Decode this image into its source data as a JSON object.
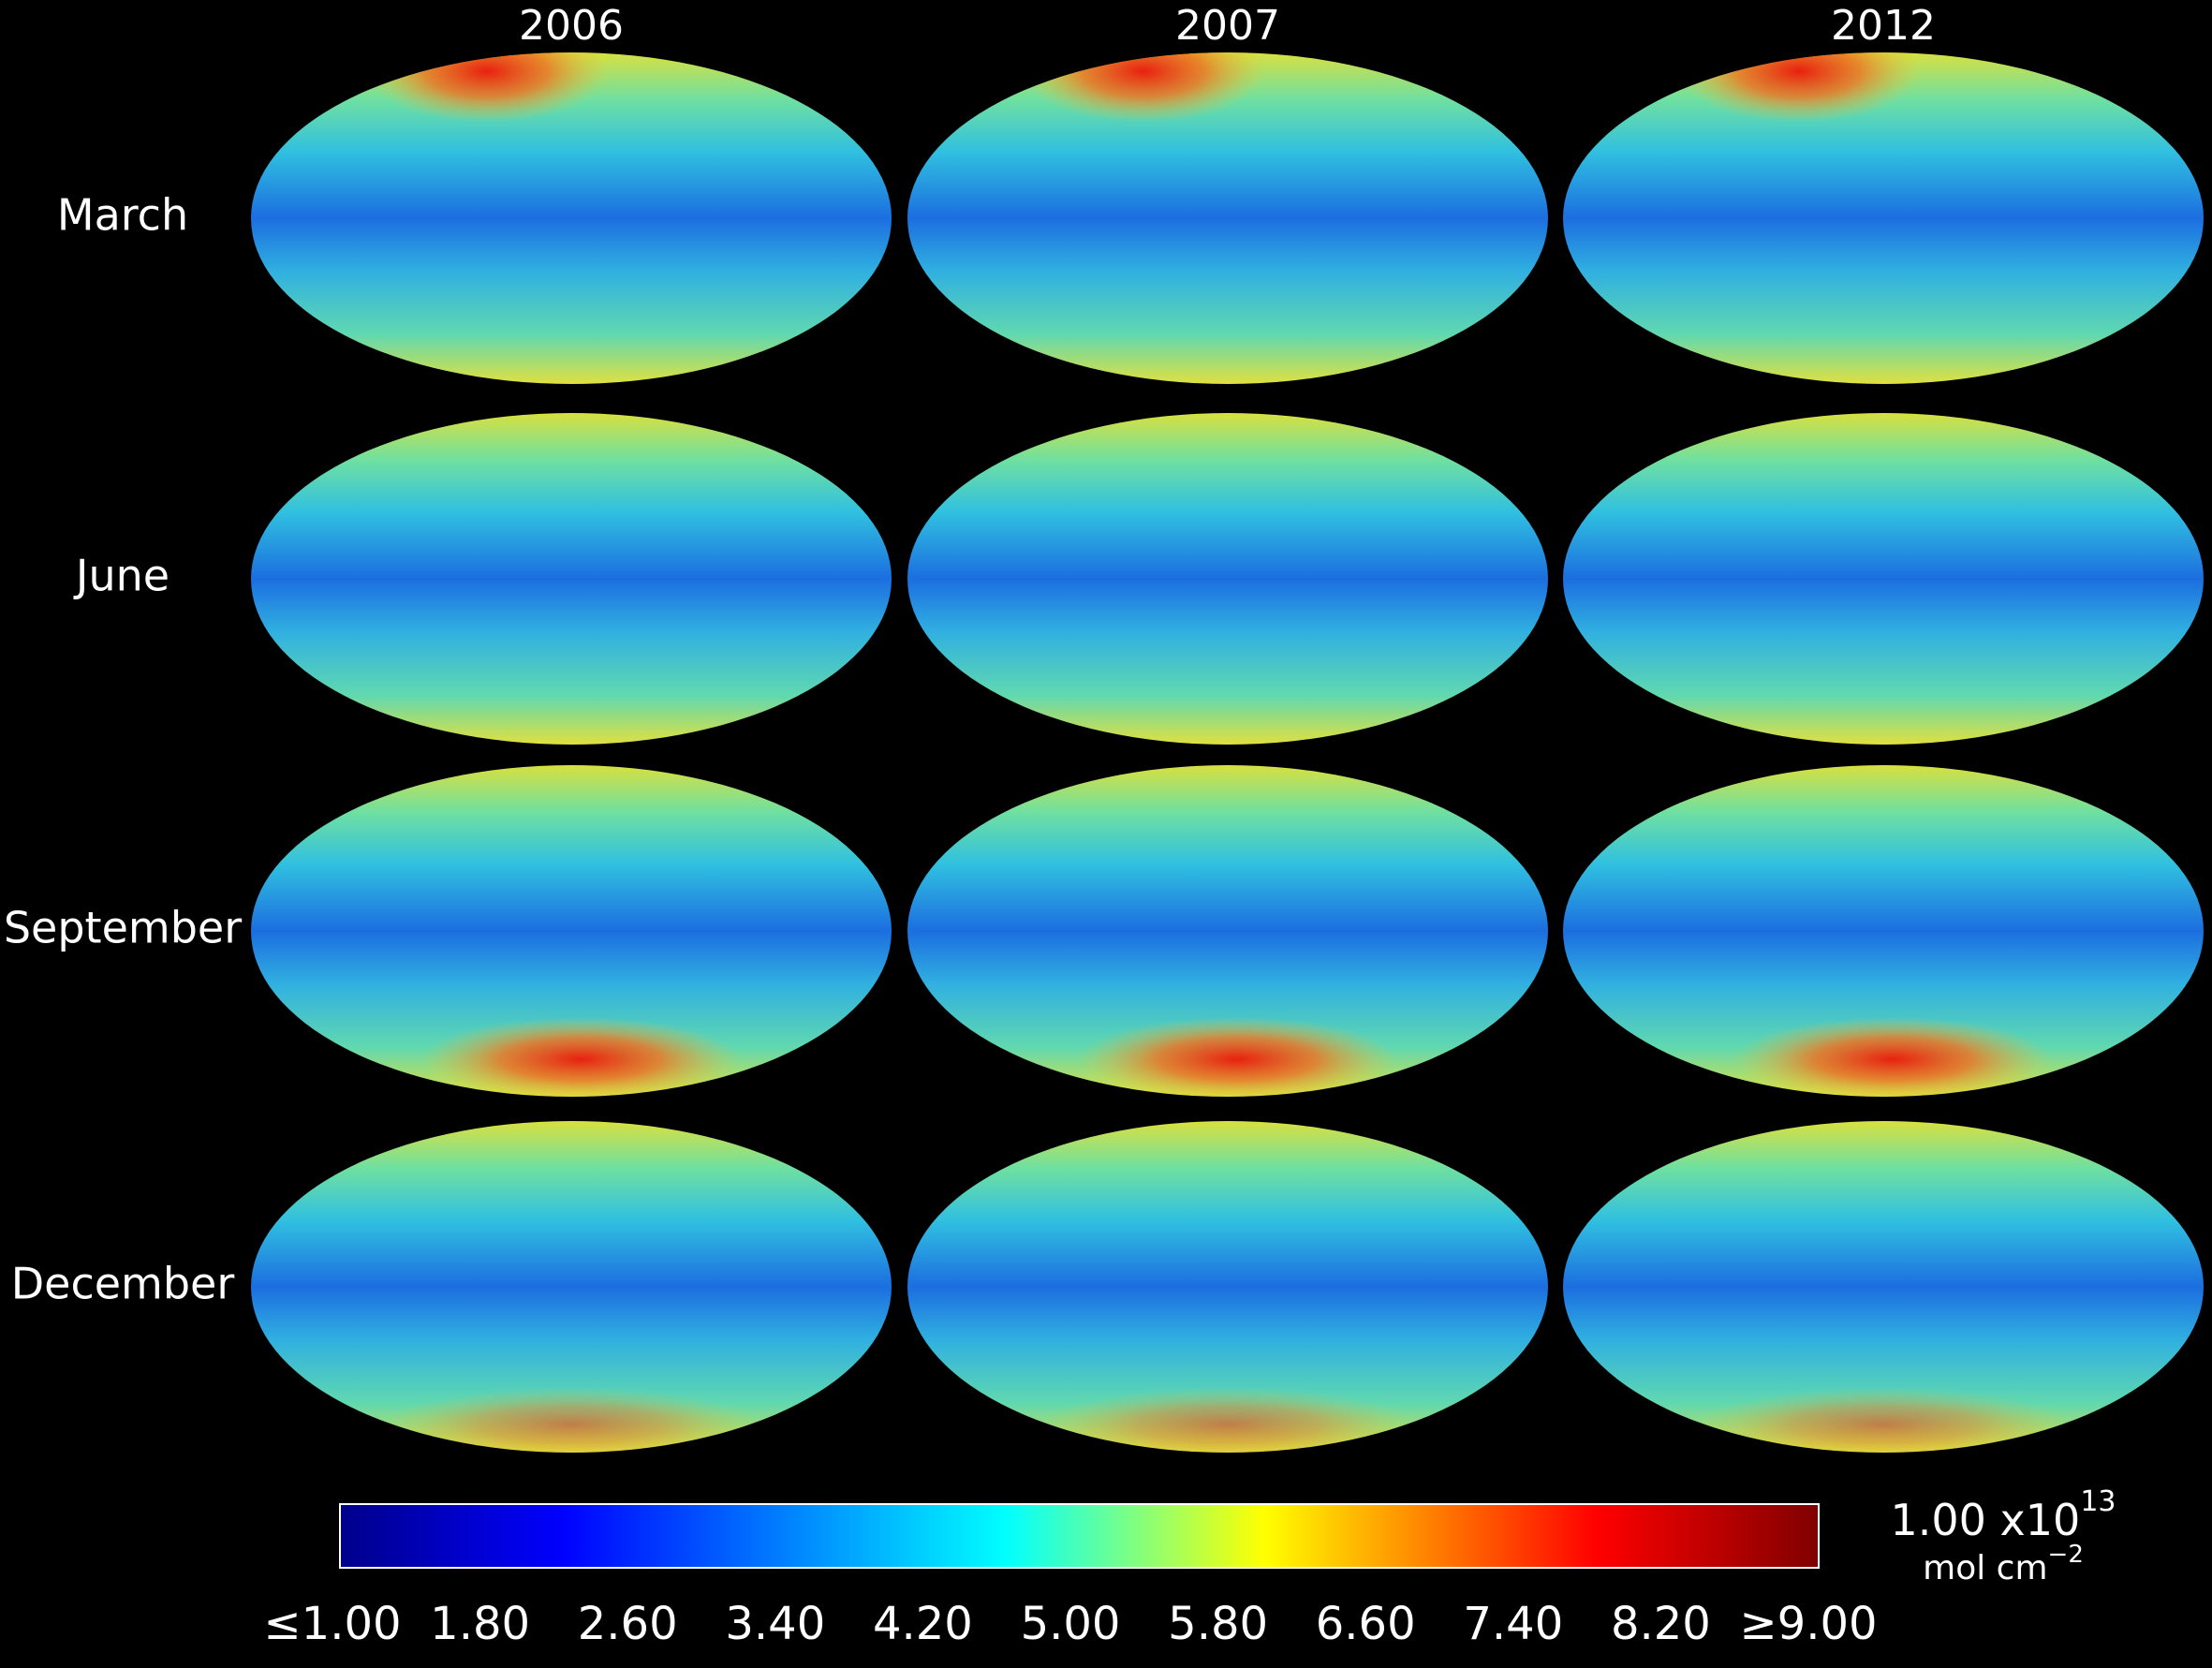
{
  "columns": [
    "2006",
    "2007",
    "2012"
  ],
  "rows": [
    "March",
    "June",
    "September",
    "December"
  ],
  "colorbar": {
    "ticks": [
      "≤1.00",
      "1.80",
      "2.60",
      "3.40",
      "4.20",
      "5.00",
      "5.80",
      "6.60",
      "7.40",
      "8.20",
      "≥9.00"
    ]
  },
  "unit": {
    "base": "1.00 x10",
    "exponent": "13",
    "label": "mol cm",
    "label_exponent": "−2"
  }
}
